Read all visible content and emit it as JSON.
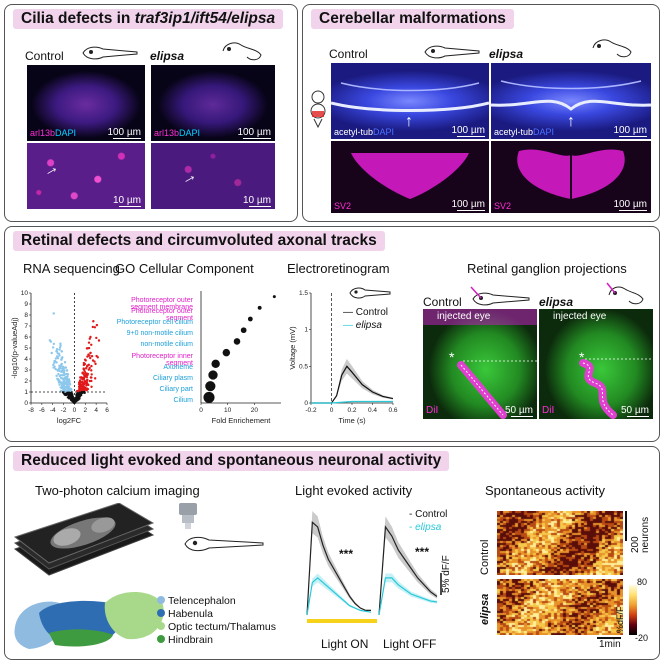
{
  "panels": {
    "cilia": {
      "title_plain": "Cilia defects in ",
      "title_italic": "traf3ip1/ift54/elipsa",
      "control_label": "Control",
      "mutant_label": "elipsa",
      "stain_a": "arl13b",
      "stain_b": "DAPI",
      "scale_top": "100 µm",
      "scale_bottom": "10 µm"
    },
    "cerebellar": {
      "title": "Cerebellar malformations",
      "control_label": "Control",
      "mutant_label": "elipsa",
      "stain_a": "acetyl-tub",
      "stain_b": "DAPI",
      "stain_bottom": "SV2",
      "scale": "100 µm"
    },
    "retinal": {
      "title": "Retinal defects and circumvoluted axonal tracks",
      "rna_title": "RNA sequencing",
      "go_title": "GO Cellular Component",
      "erg_title": "Electroretinogram",
      "rgc_title": "Retinal ganglion projections",
      "control_label": "Control",
      "mutant_label": "elipsa",
      "injected_eye": "injected eye",
      "dil_label": "DiI",
      "scale": "50 µm",
      "asterisk": "*"
    },
    "activity": {
      "title": "Reduced light evoked and spontaneous neuronal activity",
      "twop_title": "Two-photon calcium imaging",
      "light_title": "Light evoked activity",
      "spont_title": "Spontaneous activity",
      "regions": [
        {
          "name": "Telencephalon",
          "color": "#8fbbe0"
        },
        {
          "name": "Habenula",
          "color": "#2f6db3"
        },
        {
          "name": "Optic tectum/Thalamus",
          "color": "#a8d98a"
        },
        {
          "name": "Hindbrain",
          "color": "#3f9b3f"
        }
      ],
      "legend_control": "Control",
      "legend_mutant": "elipsa",
      "stars": "***",
      "scale_df": "5% dF/F",
      "light_on": "Light ON",
      "light_off": "Light OFF",
      "row_control": "Control",
      "row_mutant": "elipsa",
      "neurons_scale": "200 neurons",
      "cbar_label": "%dF/F",
      "cbar_max": "80",
      "cbar_min": "-20",
      "time_scale": "1min"
    }
  },
  "chart_data": [
    {
      "type": "scatter",
      "name": "volcano",
      "xlabel": "log2FC",
      "ylabel": "-log10(p-valueAdj)",
      "xlim": [
        -8,
        6
      ],
      "ylim": [
        0,
        10
      ],
      "xticks": [
        "-8",
        "-6",
        "-4",
        "-2",
        "0",
        "2",
        "4",
        "6"
      ],
      "yticks": [
        "0",
        "1",
        "2",
        "3",
        "4",
        "5",
        "6",
        "7",
        "8",
        "9",
        "10"
      ],
      "threshold_y": 1
    },
    {
      "type": "scatter",
      "name": "go_cellular_component",
      "xlabel": "Fold Enrichement",
      "xlim": [
        0,
        30
      ],
      "xticks": [
        "0",
        "10",
        "20"
      ],
      "categories": [
        "Photoreceptor outer segment membrane",
        "Photoreceptor outer segment",
        "Photoreceptor cell cilium",
        "9+0 non-motile cilium",
        "non-motile cilium",
        "Photoreceptor inner segment",
        "Axoneme",
        "Ciliary plasm",
        "Ciliary part",
        "Cilium"
      ],
      "category_colors": [
        "#e020c8",
        "#e020c8",
        "#1ea0d8",
        "#1ea0d8",
        "#1ea0d8",
        "#e020c8",
        "#1ea0d8",
        "#1ea0d8",
        "#1ea0d8",
        "#1ea0d8"
      ],
      "values": [
        27.5,
        22,
        18.5,
        16,
        13.5,
        9.5,
        5.5,
        4.5,
        3.5,
        3
      ]
    },
    {
      "type": "line",
      "name": "electroretinogram",
      "xlabel": "Time (s)",
      "ylabel": "Voltage (mV)",
      "xlim": [
        -0.2,
        0.6
      ],
      "ylim": [
        0,
        1.5
      ],
      "xticks": [
        "-0.2",
        "0",
        "0.2",
        "0.4",
        "0.6"
      ],
      "yticks": [
        "0",
        "0.5",
        "1",
        "1.5"
      ],
      "series": [
        {
          "name": "Control",
          "x": [
            -0.2,
            0.0,
            0.05,
            0.1,
            0.15,
            0.2,
            0.3,
            0.4,
            0.5,
            0.6
          ],
          "y": [
            0,
            0,
            0.1,
            0.38,
            0.5,
            0.42,
            0.25,
            0.15,
            0.09,
            0.06
          ]
        },
        {
          "name": "elipsa",
          "x": [
            -0.2,
            0.0,
            0.1,
            0.2,
            0.3,
            0.4,
            0.5,
            0.6
          ],
          "y": [
            0,
            0,
            0.01,
            0.02,
            0.02,
            0.02,
            0.02,
            0.02
          ]
        }
      ]
    },
    {
      "type": "line",
      "name": "light_evoked_activity",
      "series": [
        {
          "name": "Control",
          "on": [
            0,
            20,
            19,
            15,
            12,
            10,
            8,
            6,
            4,
            2.5,
            1.5,
            1,
            1
          ],
          "off": [
            0,
            19,
            17,
            14,
            12,
            10,
            8,
            6.5,
            5,
            4
          ]
        },
        {
          "name": "elipsa",
          "on": [
            0,
            7,
            8,
            7,
            6,
            5,
            4,
            3,
            2,
            1.5,
            1,
            0.8,
            0.6
          ],
          "off": [
            0,
            8,
            8,
            6.5,
            5.5,
            4.5,
            4,
            3.5,
            3,
            2.8
          ]
        }
      ]
    }
  ],
  "colors": {
    "magenta": "#ff2fd6",
    "cyan": "#00d4ff",
    "title_bg": "#f1d4ec",
    "red": "#e0191b",
    "lightblue": "#8cc7ec"
  }
}
